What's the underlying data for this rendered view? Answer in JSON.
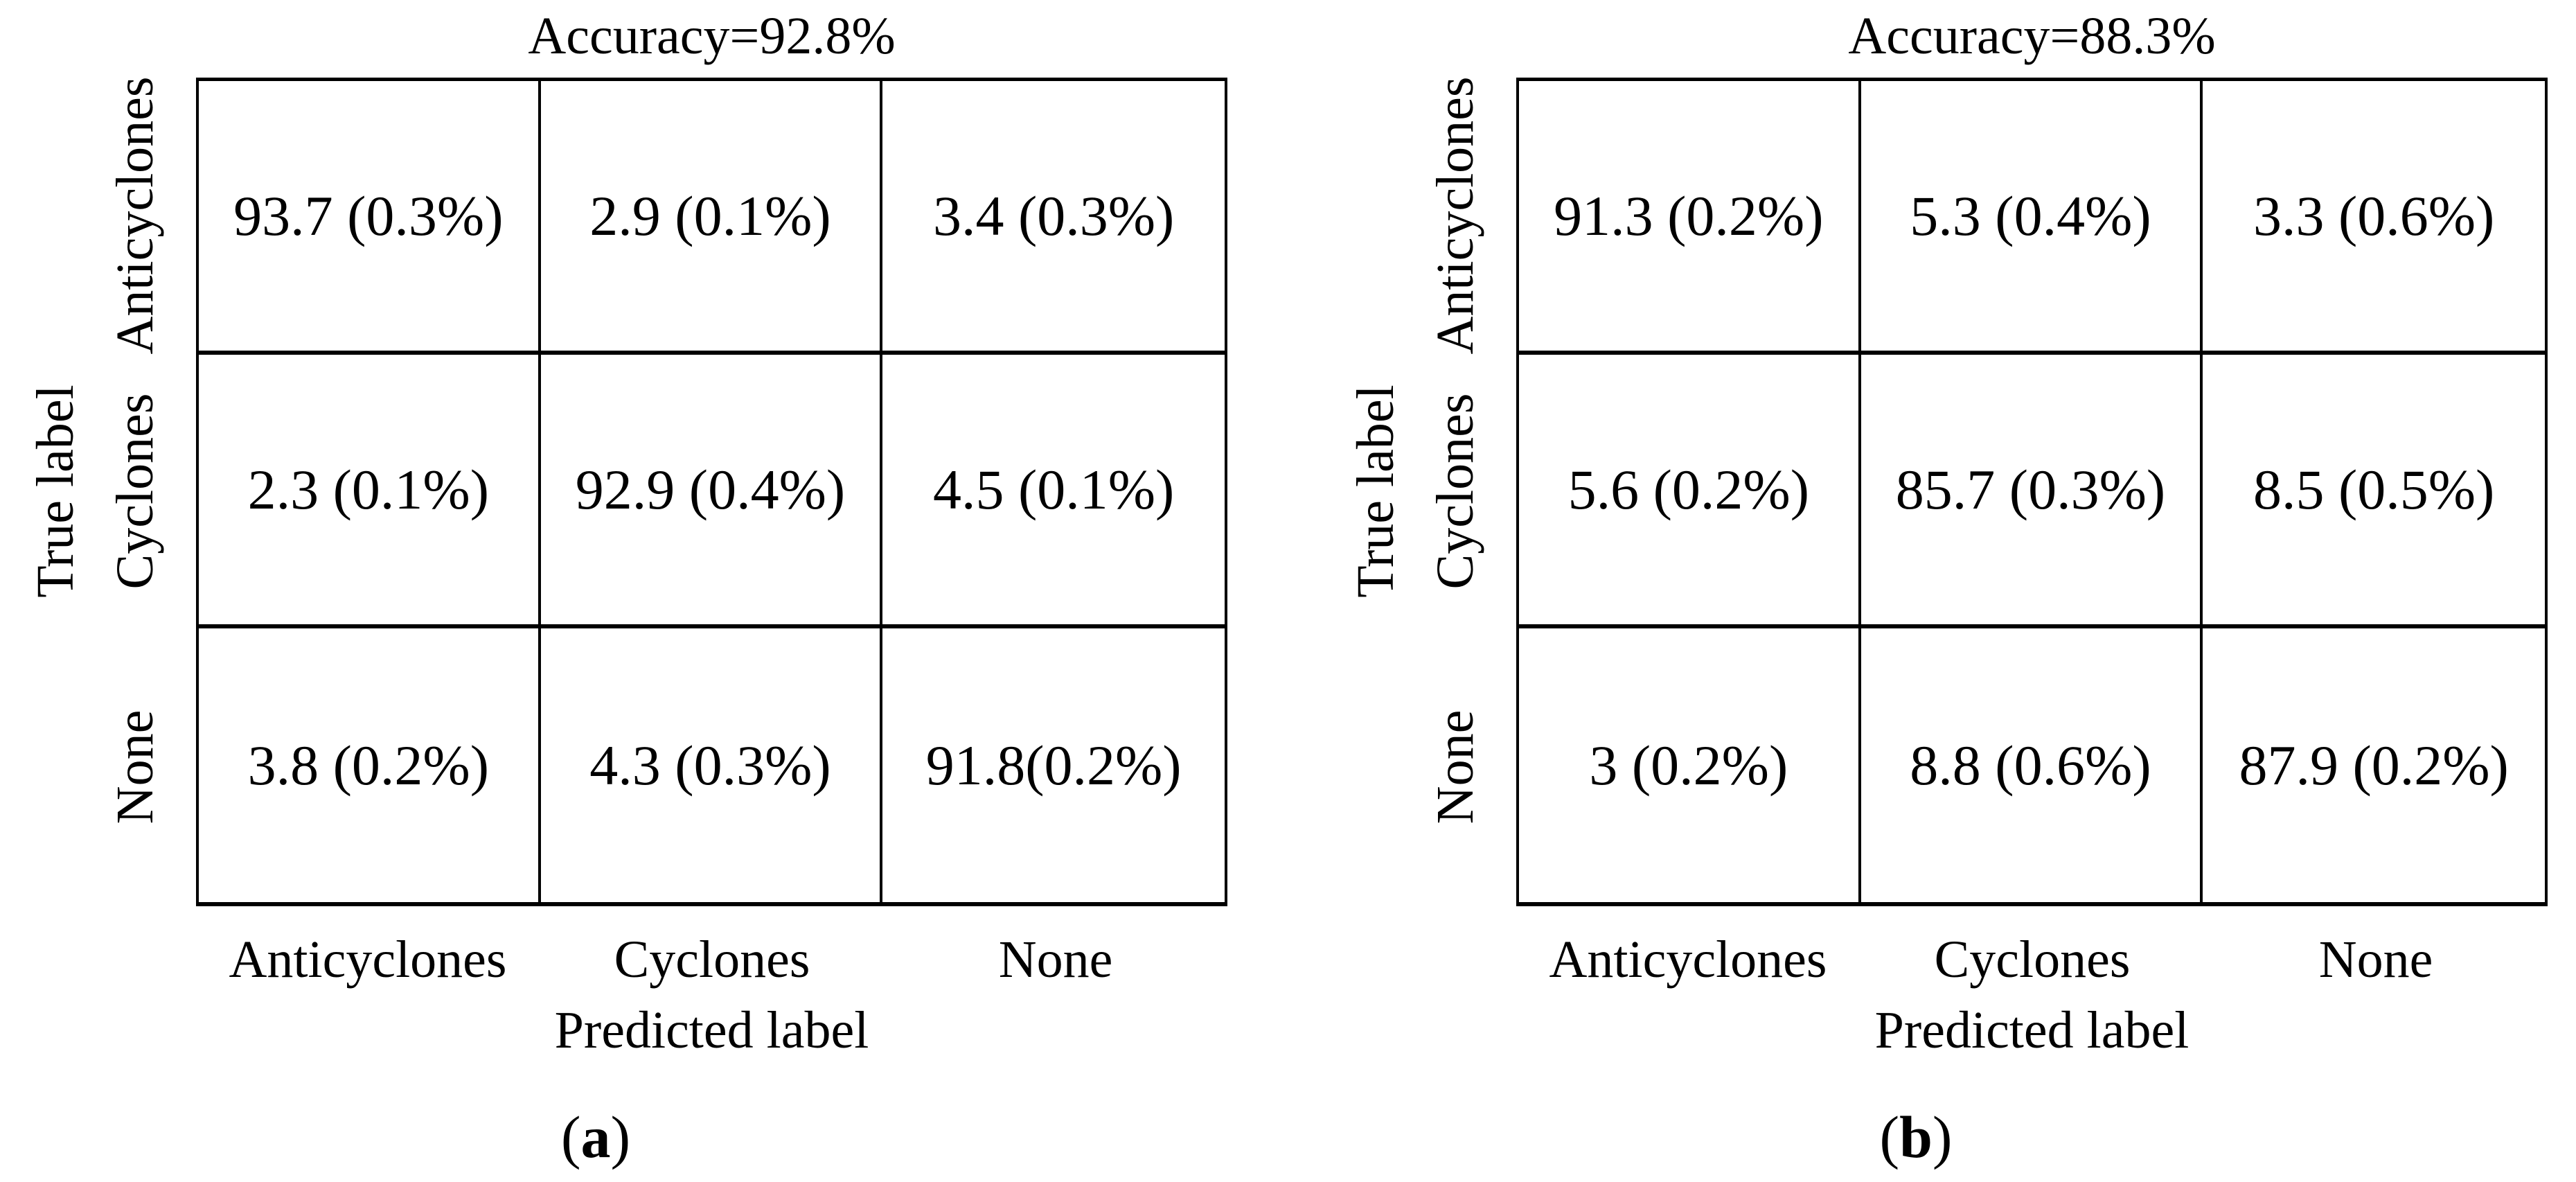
{
  "figure": {
    "background": "#ffffff",
    "text_color": "#000000",
    "line_color": "#000000"
  },
  "chart_data": [
    {
      "type": "heatmap",
      "title": "Accuracy=92.8%",
      "xlabel": "Predicted label",
      "ylabel": "True label",
      "x_categories": [
        "Anticyclones",
        "Cyclones",
        "None"
      ],
      "y_categories": [
        "Anticyclones",
        "Cyclones",
        "None"
      ],
      "cell_text": [
        [
          "93.7 (0.3%)",
          "2.9 (0.1%)",
          "3.4 (0.3%)"
        ],
        [
          "2.3 (0.1%)",
          "92.9 (0.4%)",
          "4.5 (0.1%)"
        ],
        [
          "3.8 (0.2%)",
          "4.3 (0.3%)",
          "91.8(0.2%)"
        ]
      ],
      "values_percent": [
        [
          93.7,
          2.9,
          3.4
        ],
        [
          2.3,
          92.9,
          4.5
        ],
        [
          3.8,
          4.3,
          91.8
        ]
      ],
      "uncertainty_percent": [
        [
          0.3,
          0.1,
          0.3
        ],
        [
          0.1,
          0.4,
          0.1
        ],
        [
          0.2,
          0.3,
          0.2
        ]
      ],
      "accuracy": 92.8,
      "grid": true,
      "legend": false,
      "caption": {
        "open": "(",
        "letter": "a",
        "close": ")"
      }
    },
    {
      "type": "heatmap",
      "title": "Accuracy=88.3%",
      "xlabel": "Predicted label",
      "ylabel": "True label",
      "x_categories": [
        "Anticyclones",
        "Cyclones",
        "None"
      ],
      "y_categories": [
        "Anticyclones",
        "Cyclones",
        "None"
      ],
      "cell_text": [
        [
          "91.3 (0.2%)",
          "5.3 (0.4%)",
          "3.3 (0.6%)"
        ],
        [
          "5.6 (0.2%)",
          "85.7 (0.3%)",
          "8.5 (0.5%)"
        ],
        [
          "3 (0.2%)",
          "8.8 (0.6%)",
          "87.9 (0.2%)"
        ]
      ],
      "values_percent": [
        [
          91.3,
          5.3,
          3.3
        ],
        [
          5.6,
          85.7,
          8.5
        ],
        [
          3,
          8.8,
          87.9
        ]
      ],
      "uncertainty_percent": [
        [
          0.2,
          0.4,
          0.6
        ],
        [
          0.2,
          0.3,
          0.5
        ],
        [
          0.2,
          0.6,
          0.2
        ]
      ],
      "accuracy": 88.3,
      "grid": true,
      "legend": false,
      "caption": {
        "open": "(",
        "letter": "b",
        "close": ")"
      }
    }
  ]
}
